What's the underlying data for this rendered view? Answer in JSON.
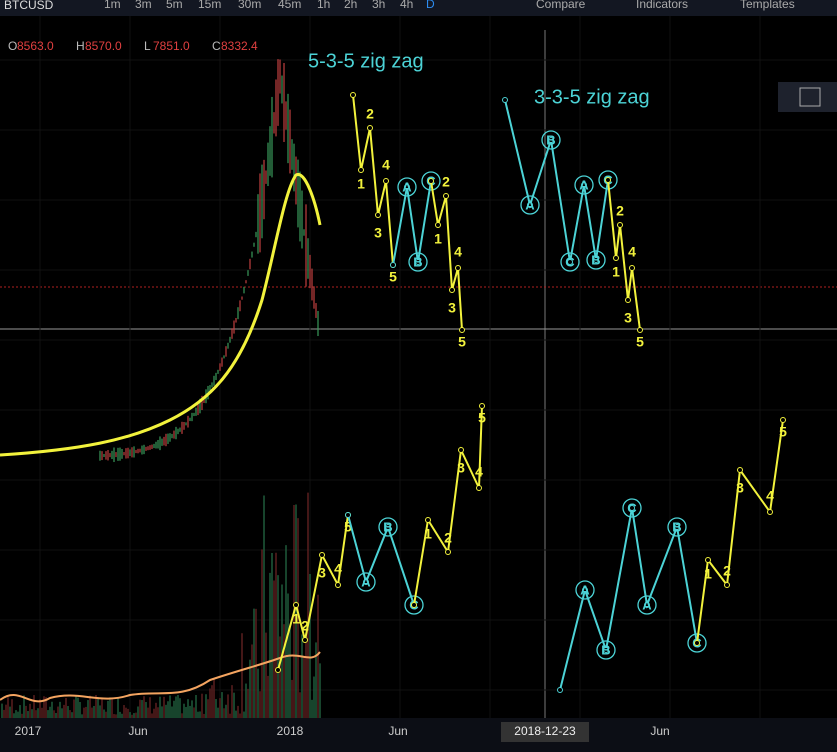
{
  "toolbar": {
    "symbol": "BTCUSD",
    "intervals": [
      "1m",
      "3m",
      "5m",
      "15m",
      "30m",
      "45m",
      "1h",
      "2h",
      "3h",
      "4h",
      "D"
    ],
    "buttons": [
      "Compare",
      "Indicators",
      "Templates"
    ]
  },
  "legend": [
    {
      "key": "O",
      "value": "8563.0"
    },
    {
      "key": "H",
      "value": "8570.0"
    },
    {
      "key": "L",
      "value": "7851.0"
    },
    {
      "key": "C",
      "value": "8332.4"
    }
  ],
  "annotations": [
    "5-3-5 zig zag",
    "3-3-5 zig zag"
  ],
  "x_axis": {
    "labels": [
      "2017",
      "Jun",
      "2018",
      "Jun",
      "Jun"
    ],
    "crosshair_label": "2018-12-23"
  },
  "colors": {
    "impulse": "#f2f23c",
    "correction": "#4cd3d6"
  },
  "waves": [
    {
      "kind": "impulse",
      "labels": [
        null,
        "1",
        "2",
        "3",
        "4",
        "5"
      ]
    },
    {
      "kind": "correction",
      "labels": [
        null,
        "A",
        "B",
        "C"
      ]
    },
    {
      "kind": "impulse",
      "labels": [
        null,
        "1",
        "2",
        "3",
        "4",
        "5"
      ]
    },
    {
      "kind": "correction",
      "labels": [
        null,
        "A",
        "B",
        "C",
        "A",
        "B",
        "C"
      ]
    },
    {
      "kind": "impulse",
      "labels": [
        null,
        "1",
        "2",
        "3",
        "4",
        "5"
      ]
    },
    {
      "kind": "impulse",
      "labels": [
        null,
        "1",
        "2",
        "3",
        "4",
        "5"
      ]
    },
    {
      "kind": "correction",
      "labels": [
        null,
        "A",
        "B",
        "C"
      ]
    },
    {
      "kind": "impulse",
      "labels": [
        null,
        "1",
        "2",
        "3",
        "4",
        "5"
      ]
    },
    {
      "kind": "correction",
      "labels": [
        null,
        "A",
        "B",
        "C",
        "A",
        "B",
        "C"
      ]
    },
    {
      "kind": "impulse",
      "labels": [
        null,
        "1",
        "2",
        "3",
        "4",
        "5"
      ]
    }
  ]
}
